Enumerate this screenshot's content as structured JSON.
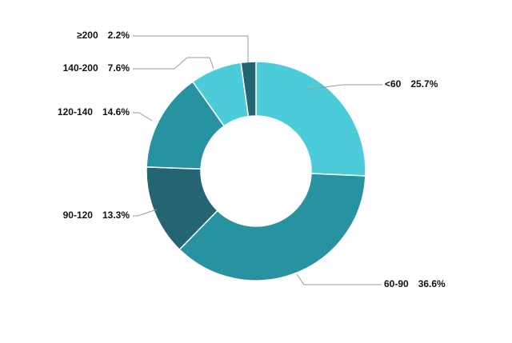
{
  "chart_data": {
    "type": "pie",
    "donut": true,
    "title": "",
    "legend": "none",
    "slices": [
      {
        "category": "<60",
        "percent_label": "25.7%",
        "value": 25.7,
        "color": "#4ccbd9"
      },
      {
        "category": "60-90",
        "percent_label": "36.6%",
        "value": 36.6,
        "color": "#2793a1"
      },
      {
        "category": "90-120",
        "percent_label": "13.3%",
        "value": 13.3,
        "color": "#236570"
      },
      {
        "category": "120-140",
        "percent_label": "14.6%",
        "value": 14.6,
        "color": "#2793a1"
      },
      {
        "category": "140-200",
        "percent_label": "7.6%",
        "value": 7.6,
        "color": "#4ccbd9"
      },
      {
        "category": "≥200",
        "percent_label": "2.2%",
        "value": 2.2,
        "color": "#236570"
      }
    ]
  }
}
